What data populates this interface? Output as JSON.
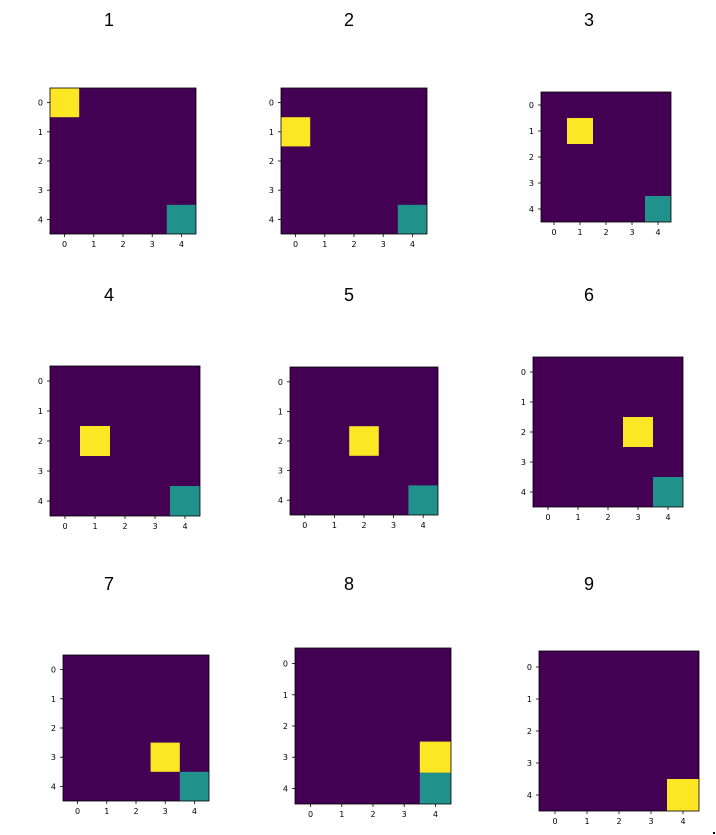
{
  "colors": {
    "empty": "#440154",
    "agent": "#fde725",
    "goal": "#21918c",
    "axis": "#000000"
  },
  "chart_data": [
    {
      "type": "heatmap",
      "title": "1",
      "x_ticks": [
        "0",
        "1",
        "2",
        "3",
        "4"
      ],
      "y_ticks": [
        "0",
        "1",
        "2",
        "3",
        "4"
      ],
      "cells": [
        {
          "row": 0,
          "col": 0,
          "value": "agent"
        },
        {
          "row": 4,
          "col": 4,
          "value": "goal"
        }
      ]
    },
    {
      "type": "heatmap",
      "title": "2",
      "x_ticks": [
        "0",
        "1",
        "2",
        "3",
        "4"
      ],
      "y_ticks": [
        "0",
        "1",
        "2",
        "3",
        "4"
      ],
      "cells": [
        {
          "row": 1,
          "col": 0,
          "value": "agent"
        },
        {
          "row": 4,
          "col": 4,
          "value": "goal"
        }
      ]
    },
    {
      "type": "heatmap",
      "title": "3",
      "x_ticks": [
        "0",
        "1",
        "2",
        "3",
        "4"
      ],
      "y_ticks": [
        "0",
        "1",
        "2",
        "3",
        "4"
      ],
      "cells": [
        {
          "row": 1,
          "col": 1,
          "value": "agent"
        },
        {
          "row": 4,
          "col": 4,
          "value": "goal"
        }
      ]
    },
    {
      "type": "heatmap",
      "title": "4",
      "x_ticks": [
        "0",
        "1",
        "2",
        "3",
        "4"
      ],
      "y_ticks": [
        "0",
        "1",
        "2",
        "3",
        "4"
      ],
      "cells": [
        {
          "row": 2,
          "col": 1,
          "value": "agent"
        },
        {
          "row": 4,
          "col": 4,
          "value": "goal"
        }
      ]
    },
    {
      "type": "heatmap",
      "title": "5",
      "x_ticks": [
        "0",
        "1",
        "2",
        "3",
        "4"
      ],
      "y_ticks": [
        "0",
        "1",
        "2",
        "3",
        "4"
      ],
      "cells": [
        {
          "row": 2,
          "col": 2,
          "value": "agent"
        },
        {
          "row": 4,
          "col": 4,
          "value": "goal"
        }
      ]
    },
    {
      "type": "heatmap",
      "title": "6",
      "x_ticks": [
        "0",
        "1",
        "2",
        "3",
        "4"
      ],
      "y_ticks": [
        "0",
        "1",
        "2",
        "3",
        "4"
      ],
      "cells": [
        {
          "row": 2,
          "col": 3,
          "value": "agent"
        },
        {
          "row": 4,
          "col": 4,
          "value": "goal"
        }
      ]
    },
    {
      "type": "heatmap",
      "title": "7",
      "x_ticks": [
        "0",
        "1",
        "2",
        "3",
        "4"
      ],
      "y_ticks": [
        "0",
        "1",
        "2",
        "3",
        "4"
      ],
      "cells": [
        {
          "row": 3,
          "col": 3,
          "value": "agent"
        },
        {
          "row": 4,
          "col": 4,
          "value": "goal"
        }
      ]
    },
    {
      "type": "heatmap",
      "title": "8",
      "x_ticks": [
        "0",
        "1",
        "2",
        "3",
        "4"
      ],
      "y_ticks": [
        "0",
        "1",
        "2",
        "3",
        "4"
      ],
      "cells": [
        {
          "row": 3,
          "col": 4,
          "value": "agent"
        },
        {
          "row": 4,
          "col": 4,
          "value": "goal"
        }
      ]
    },
    {
      "type": "heatmap",
      "title": "9",
      "x_ticks": [
        "0",
        "1",
        "2",
        "3",
        "4"
      ],
      "y_ticks": [
        "0",
        "1",
        "2",
        "3",
        "4"
      ],
      "cells": [
        {
          "row": 4,
          "col": 4,
          "value": "agent"
        }
      ]
    }
  ]
}
